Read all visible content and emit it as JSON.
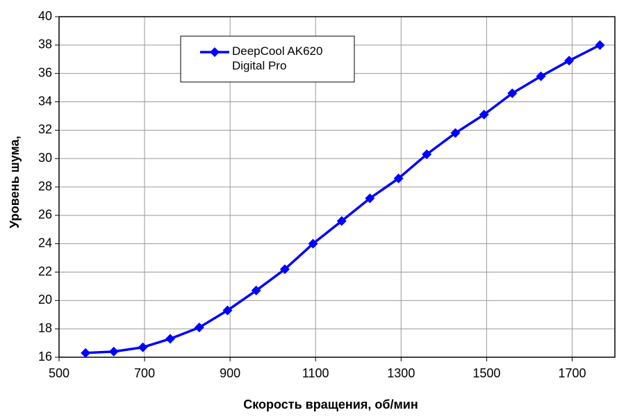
{
  "chart_data": {
    "type": "line",
    "xlabel": "Скорость вращения, об/мин",
    "ylabel": "Уровень шума,",
    "x": [
      562,
      628,
      696,
      760,
      828,
      894,
      961,
      1028,
      1094,
      1161,
      1227,
      1294,
      1360,
      1427,
      1494,
      1560,
      1627,
      1693,
      1765
    ],
    "series": [
      {
        "name": "DeepCool AK620 Digital Pro",
        "color": "#0000ff",
        "values": [
          16.3,
          16.4,
          16.7,
          17.3,
          18.1,
          19.3,
          20.7,
          22.2,
          24.0,
          25.6,
          27.2,
          28.6,
          30.3,
          31.8,
          33.1,
          34.6,
          35.8,
          36.9,
          38.0
        ]
      }
    ],
    "xlim": [
      500,
      1800
    ],
    "xticks": [
      500,
      700,
      900,
      1100,
      1300,
      1500,
      1700
    ],
    "ylim": [
      16,
      40
    ],
    "yticks": [
      16,
      18,
      20,
      22,
      24,
      26,
      28,
      30,
      32,
      34,
      36,
      38,
      40
    ],
    "grid": true
  }
}
